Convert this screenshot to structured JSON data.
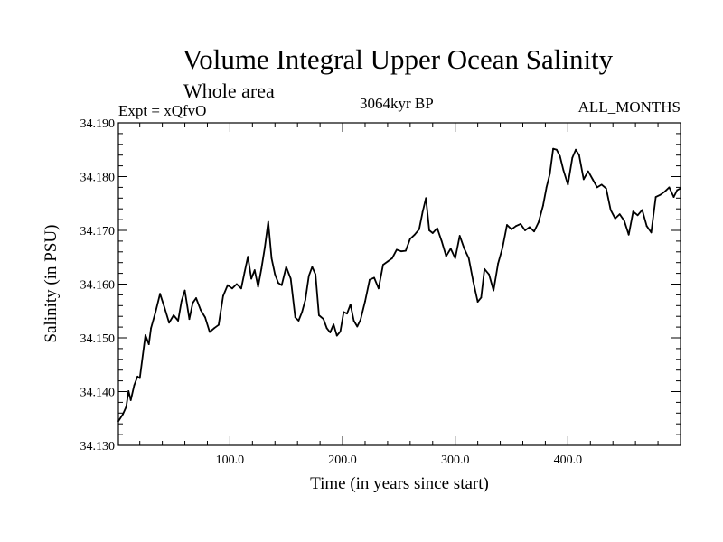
{
  "chart_data": {
    "type": "line",
    "title": "Volume Integral Upper Ocean Salinity",
    "subtitle": "Whole area",
    "annotations": {
      "experiment": "Expt = xQfvO",
      "period": "3064kyr BP",
      "months": "ALL_MONTHS"
    },
    "xlabel": "Time (in years since start)",
    "ylabel": "Salinity (in PSU)",
    "xlim": [
      1,
      500
    ],
    "ylim": [
      34.13,
      34.19
    ],
    "xticks": [
      100,
      200,
      300,
      400
    ],
    "xtick_labels": [
      "100.0",
      "200.0",
      "300.0",
      "400.0"
    ],
    "yticks": [
      34.13,
      34.14,
      34.15,
      34.16,
      34.17,
      34.18,
      34.19
    ],
    "ytick_labels": [
      "34.130",
      "34.140",
      "34.150",
      "34.160",
      "34.170",
      "34.180",
      "34.190"
    ],
    "grid": false,
    "series": [
      {
        "name": "Salinity",
        "x": [
          1,
          5,
          8,
          10,
          12,
          15,
          18,
          20,
          25,
          28,
          30,
          34,
          38,
          42,
          46,
          50,
          54,
          57,
          60,
          64,
          67,
          70,
          74,
          78,
          82,
          86,
          90,
          94,
          98,
          102,
          106,
          110,
          113,
          116,
          119,
          122,
          125,
          128,
          131,
          134,
          137,
          140,
          143,
          146,
          150,
          154,
          158,
          161,
          164,
          167,
          170,
          173,
          176,
          179,
          183,
          186,
          189,
          192,
          195,
          198,
          201,
          204,
          207,
          210,
          213,
          216,
          220,
          224,
          228,
          232,
          236,
          240,
          244,
          248,
          252,
          256,
          260,
          264,
          268,
          271,
          274,
          277,
          280,
          284,
          288,
          292,
          296,
          300,
          304,
          308,
          312,
          316,
          320,
          323,
          326,
          330,
          334,
          338,
          342,
          346,
          350,
          354,
          358,
          362,
          366,
          370,
          374,
          378,
          381,
          384,
          387,
          390,
          393,
          396,
          400,
          404,
          407,
          410,
          414,
          418,
          422,
          426,
          430,
          434,
          438,
          442,
          446,
          450,
          454,
          458,
          462,
          466,
          470,
          474,
          478,
          482,
          486,
          490,
          494,
          497,
          500
        ],
        "values": [
          34.1345,
          34.1358,
          34.1372,
          34.1401,
          34.1384,
          34.1412,
          34.1428,
          34.1425,
          34.1505,
          34.1488,
          34.1518,
          34.1548,
          34.1582,
          34.1556,
          34.1528,
          34.1542,
          34.1532,
          34.1568,
          34.1588,
          34.1535,
          34.1565,
          34.1574,
          34.1552,
          34.1538,
          34.1511,
          34.1518,
          34.1524,
          34.1578,
          34.1598,
          34.1592,
          34.16,
          34.1592,
          34.1622,
          34.1651,
          34.161,
          34.1626,
          34.1595,
          34.1629,
          34.1668,
          34.1716,
          34.1648,
          34.1618,
          34.1602,
          34.1598,
          34.1632,
          34.161,
          34.1538,
          34.1532,
          34.1548,
          34.1571,
          34.1615,
          34.1632,
          34.1618,
          34.1542,
          34.1535,
          34.1518,
          34.151,
          34.1525,
          34.1504,
          34.1512,
          34.1548,
          34.1545,
          34.1562,
          34.1532,
          34.1521,
          34.1534,
          34.1568,
          34.1608,
          34.1612,
          34.1592,
          34.1636,
          34.1642,
          34.1648,
          34.1664,
          34.1661,
          34.1662,
          34.1684,
          34.1692,
          34.1702,
          34.1734,
          34.176,
          34.17,
          34.1695,
          34.1704,
          34.168,
          34.1652,
          34.1666,
          34.1648,
          34.169,
          34.1666,
          34.1648,
          34.1605,
          34.1567,
          34.1575,
          34.1628,
          34.1618,
          34.1588,
          34.1638,
          34.1668,
          34.171,
          34.1702,
          34.1708,
          34.1712,
          34.17,
          34.1706,
          34.1698,
          34.1715,
          34.1746,
          34.178,
          34.1805,
          34.1852,
          34.185,
          34.1838,
          34.1812,
          34.1785,
          34.1835,
          34.185,
          34.184,
          34.1795,
          34.181,
          34.1795,
          34.178,
          34.1785,
          34.1778,
          34.1738,
          34.1722,
          34.173,
          34.1718,
          34.1692,
          34.1735,
          34.1728,
          34.1738,
          34.1708,
          34.1696,
          34.1762,
          34.1766,
          34.1772,
          34.178,
          34.1762,
          34.1775,
          34.1778
        ]
      }
    ]
  }
}
